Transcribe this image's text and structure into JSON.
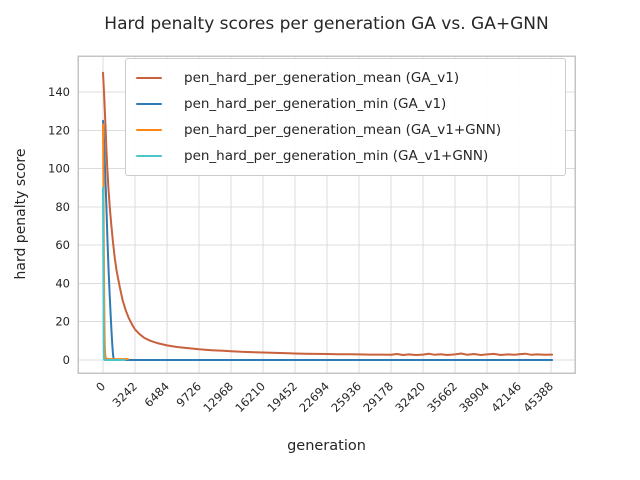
{
  "chart_data": {
    "type": "line",
    "title": "Hard penalty scores per generation GA vs. GA+GNN",
    "xlabel": "generation",
    "ylabel": "hard penalty score",
    "grid": true,
    "legend_position": "upper center inside plot",
    "x_ticks": [
      0,
      3242,
      6484,
      9726,
      12968,
      16210,
      19452,
      22694,
      25936,
      29178,
      32420,
      35662,
      38904,
      42146,
      45388
    ],
    "y_ticks": [
      0,
      20,
      40,
      60,
      80,
      100,
      120,
      140
    ],
    "xlim": [
      -2533,
      47822
    ],
    "ylim": [
      -6.8,
      158.8
    ],
    "colors": {
      "frame": "#c4c4c4",
      "gridline": "#dcdcdc",
      "text": "#262626",
      "legend_border": "#cccccc"
    },
    "series": [
      {
        "name": "pen_hard_per_generation_mean (GA_v1)",
        "color": "#c8613c",
        "points": [
          [
            0,
            150
          ],
          [
            120,
            138
          ],
          [
            250,
            122
          ],
          [
            400,
            104
          ],
          [
            550,
            90
          ],
          [
            700,
            79
          ],
          [
            850,
            70
          ],
          [
            1000,
            62
          ],
          [
            1200,
            53
          ],
          [
            1400,
            46
          ],
          [
            1700,
            38
          ],
          [
            2000,
            31
          ],
          [
            2300,
            26
          ],
          [
            2600,
            22
          ],
          [
            3000,
            18
          ],
          [
            3242,
            16
          ],
          [
            3700,
            13.5
          ],
          [
            4200,
            11.5
          ],
          [
            4800,
            10
          ],
          [
            5500,
            8.8
          ],
          [
            6484,
            7.6
          ],
          [
            7500,
            6.8
          ],
          [
            8600,
            6.2
          ],
          [
            9726,
            5.6
          ],
          [
            11000,
            5.1
          ],
          [
            12200,
            4.8
          ],
          [
            12968,
            4.6
          ],
          [
            14000,
            4.3
          ],
          [
            15000,
            4.1
          ],
          [
            16210,
            3.9
          ],
          [
            17500,
            3.7
          ],
          [
            18800,
            3.5
          ],
          [
            19452,
            3.4
          ],
          [
            20500,
            3.3
          ],
          [
            21600,
            3.2
          ],
          [
            22694,
            3.1
          ],
          [
            23800,
            3.0
          ],
          [
            24900,
            3.0
          ],
          [
            25936,
            2.9
          ],
          [
            27000,
            2.8
          ],
          [
            28100,
            2.8
          ],
          [
            29178,
            2.7
          ],
          [
            29800,
            3.1
          ],
          [
            30400,
            2.6
          ],
          [
            31000,
            2.9
          ],
          [
            31700,
            2.6
          ],
          [
            32420,
            2.8
          ],
          [
            33000,
            3.3
          ],
          [
            33600,
            2.7
          ],
          [
            34200,
            3.0
          ],
          [
            34900,
            2.6
          ],
          [
            35662,
            2.9
          ],
          [
            36300,
            3.4
          ],
          [
            36900,
            2.7
          ],
          [
            37600,
            3.1
          ],
          [
            38300,
            2.6
          ],
          [
            38904,
            2.9
          ],
          [
            39600,
            3.2
          ],
          [
            40300,
            2.6
          ],
          [
            41000,
            2.9
          ],
          [
            41700,
            2.7
          ],
          [
            42146,
            3.0
          ],
          [
            42800,
            3.3
          ],
          [
            43400,
            2.7
          ],
          [
            44000,
            2.9
          ],
          [
            44700,
            2.7
          ],
          [
            45500,
            2.8
          ]
        ]
      },
      {
        "name": "pen_hard_per_generation_min (GA_v1)",
        "color": "#2d7bb6",
        "points": [
          [
            0,
            125
          ],
          [
            80,
            117
          ],
          [
            160,
            106
          ],
          [
            260,
            92
          ],
          [
            360,
            77
          ],
          [
            460,
            62
          ],
          [
            560,
            48
          ],
          [
            660,
            36
          ],
          [
            760,
            25
          ],
          [
            860,
            15
          ],
          [
            950,
            7
          ],
          [
            1030,
            2
          ],
          [
            1100,
            0.3
          ],
          [
            1250,
            0
          ],
          [
            45500,
            0
          ]
        ]
      },
      {
        "name": "pen_hard_per_generation_mean (GA_v1+GNN)",
        "color": "#ff8614",
        "points": [
          [
            0,
            123
          ],
          [
            40,
            95
          ],
          [
            80,
            62
          ],
          [
            120,
            32
          ],
          [
            160,
            12
          ],
          [
            200,
            4
          ],
          [
            260,
            1.2
          ],
          [
            350,
            0.6
          ],
          [
            600,
            0.5
          ],
          [
            1200,
            0.45
          ],
          [
            2530,
            0.45
          ]
        ]
      },
      {
        "name": "pen_hard_per_generation_min (GA_v1+GNN)",
        "color": "#4ac5c9",
        "points": [
          [
            0,
            90
          ],
          [
            25,
            62
          ],
          [
            50,
            34
          ],
          [
            75,
            12
          ],
          [
            95,
            3
          ],
          [
            115,
            0.5
          ],
          [
            160,
            0
          ],
          [
            2230,
            0
          ]
        ]
      }
    ]
  }
}
